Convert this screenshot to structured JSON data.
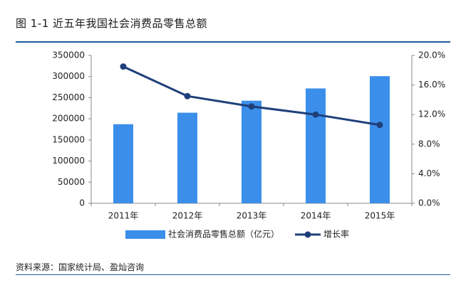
{
  "header": {
    "title": "图 1-1 近五年我国社会消费品零售总额"
  },
  "footer": {
    "source": "资料来源：国家统计局、盈灿咨询"
  },
  "colors": {
    "bar": "#3b8fea",
    "line": "#1f3f7a",
    "rule": "#1f5c9c"
  },
  "chart_data": {
    "type": "bar+line",
    "categories": [
      "2011年",
      "2012年",
      "2013年",
      "2014年",
      "2015年"
    ],
    "series": [
      {
        "name": "社会消费品零售总额（亿元）",
        "type": "bar",
        "axis": "left",
        "values": [
          187206,
          214433,
          242843,
          271896,
          300931
        ]
      },
      {
        "name": "增长率",
        "type": "line",
        "axis": "right",
        "values": [
          18.5,
          14.5,
          13.1,
          12.0,
          10.6
        ]
      }
    ],
    "left_axis": {
      "min": 0,
      "max": 350000,
      "step": 50000,
      "ticks": [
        "0",
        "50000",
        "100000",
        "150000",
        "200000",
        "250000",
        "300000",
        "350000"
      ]
    },
    "right_axis": {
      "min": 0,
      "max": 20,
      "step": 4,
      "ticks": [
        "0.0%",
        "4.0%",
        "8.0%",
        "12.0%",
        "16.0%",
        "20.0%"
      ]
    },
    "legend_position": "bottom",
    "grid": false
  }
}
